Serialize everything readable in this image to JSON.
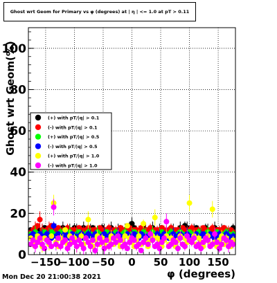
{
  "title": "Ghost wrt Geom for Primary vs φ (degrees) at | η | <= 1.0 at pT > 0.11",
  "timestamp": "Mon Dec 20 21:00:38 2021",
  "chart_data": {
    "type": "scatter",
    "ylabel": "Ghost wrt Geom(%)",
    "xlabel": "φ (degrees)",
    "xlim": [
      -180,
      180
    ],
    "ylim": [
      0,
      110
    ],
    "grid": true,
    "legend_position": "left-middle",
    "x_ticks": [
      -150,
      -100,
      -50,
      0,
      50,
      100,
      150
    ],
    "x_tick_labels": [
      "−150",
      "−100",
      "−50",
      "0",
      "50",
      "100",
      "150"
    ],
    "y_ticks": [
      0,
      20,
      40,
      60,
      80,
      100
    ],
    "y_tick_labels": [
      "0",
      "20",
      "40",
      "60",
      "80",
      "100"
    ],
    "x": [
      -176,
      -172,
      -168,
      -164,
      -160,
      -156,
      -152,
      -148,
      -144,
      -140,
      -136,
      -132,
      -128,
      -124,
      -120,
      -116,
      -112,
      -108,
      -104,
      -100,
      -96,
      -92,
      -88,
      -84,
      -80,
      -76,
      -72,
      -68,
      -64,
      -60,
      -56,
      -52,
      -48,
      -44,
      -40,
      -36,
      -32,
      -28,
      -24,
      -20,
      -16,
      -12,
      -8,
      -4,
      0,
      4,
      8,
      12,
      16,
      20,
      24,
      28,
      32,
      36,
      40,
      44,
      48,
      52,
      56,
      60,
      64,
      68,
      72,
      76,
      80,
      84,
      88,
      92,
      96,
      100,
      104,
      108,
      112,
      116,
      120,
      124,
      128,
      132,
      136,
      140,
      144,
      148,
      152,
      156,
      160,
      164,
      168,
      172,
      176
    ],
    "series": [
      {
        "name": "(+) with pT/|q| > 0.1",
        "color": "#000000",
        "values": [
          12,
          11,
          13,
          12,
          11,
          12,
          13,
          12,
          11,
          12,
          13,
          12,
          11,
          12,
          13,
          12,
          11,
          12,
          12,
          13,
          12,
          11,
          12,
          13,
          12,
          11,
          12,
          13,
          12,
          11,
          12,
          13,
          12,
          11,
          12,
          13,
          12,
          11,
          12,
          13,
          12,
          12,
          11,
          14,
          15,
          13,
          12,
          11,
          12,
          13,
          12,
          11,
          12,
          13,
          12,
          11,
          12,
          13,
          12,
          11,
          12,
          13,
          12,
          11,
          12,
          13,
          12,
          14,
          13,
          12,
          11,
          12,
          13,
          12,
          11,
          12,
          13,
          12,
          11,
          12,
          13,
          12,
          11,
          12,
          13,
          12,
          11,
          12,
          13
        ]
      },
      {
        "name": "(-) with pT/|q| > 0.1",
        "color": "#ff0000",
        "values": [
          11,
          12,
          13,
          14,
          17,
          12,
          11,
          12,
          13,
          14,
          12,
          11,
          13,
          12,
          11,
          12,
          13,
          11,
          12,
          12,
          11,
          13,
          12,
          11,
          12,
          13,
          11,
          12,
          12,
          11,
          13,
          12,
          11,
          12,
          13,
          11,
          12,
          12,
          11,
          13,
          12,
          11,
          12,
          13,
          11,
          12,
          12,
          11,
          13,
          12,
          11,
          12,
          13,
          11,
          12,
          12,
          11,
          13,
          12,
          11,
          12,
          13,
          11,
          12,
          12,
          11,
          13,
          12,
          11,
          12,
          13,
          11,
          12,
          12,
          11,
          13,
          12,
          11,
          12,
          13,
          11,
          12,
          12,
          11,
          13,
          12,
          11,
          12,
          11
        ]
      },
      {
        "name": "(+) with pT/|q| > 0.5",
        "color": "#00ff00",
        "values": [
          10,
          9,
          11,
          10,
          9,
          10,
          11,
          9,
          10,
          11,
          10,
          9,
          10,
          11,
          10,
          9,
          10,
          11,
          10,
          9,
          10,
          11,
          10,
          9,
          10,
          11,
          10,
          9,
          10,
          11,
          10,
          9,
          10,
          11,
          10,
          9,
          10,
          11,
          10,
          9,
          10,
          11,
          10,
          9,
          10,
          11,
          10,
          9,
          10,
          11,
          10,
          9,
          10,
          11,
          10,
          9,
          10,
          11,
          10,
          9,
          10,
          11,
          10,
          9,
          10,
          11,
          10,
          9,
          10,
          11,
          10,
          9,
          10,
          11,
          10,
          9,
          10,
          11,
          10,
          9,
          10,
          11,
          10,
          9,
          10,
          11,
          10,
          9,
          10
        ]
      },
      {
        "name": "(-) with pT/|q| > 0.5",
        "color": "#0000ff",
        "values": [
          9,
          10,
          8,
          9,
          10,
          9,
          8,
          10,
          9,
          8,
          14,
          9,
          10,
          8,
          9,
          10,
          9,
          8,
          10,
          9,
          8,
          9,
          10,
          8,
          9,
          10,
          9,
          8,
          10,
          9,
          8,
          9,
          10,
          8,
          9,
          10,
          9,
          8,
          10,
          9,
          8,
          9,
          10,
          8,
          9,
          10,
          9,
          8,
          10,
          9,
          8,
          9,
          10,
          8,
          9,
          10,
          9,
          8,
          10,
          9,
          8,
          9,
          10,
          8,
          9,
          10,
          9,
          8,
          10,
          9,
          8,
          9,
          10,
          8,
          9,
          10,
          9,
          8,
          10,
          9,
          8,
          9,
          10,
          8,
          9,
          10,
          9,
          8,
          9
        ]
      },
      {
        "name": "(+) with pT/|q| > 1.0",
        "color": "#ffff00",
        "values": [
          8,
          5,
          7,
          9,
          6,
          4,
          8,
          7,
          5,
          9,
          25,
          6,
          4,
          8,
          7,
          12,
          5,
          9,
          6,
          8,
          4,
          7,
          9,
          5,
          8,
          17,
          6,
          4,
          7,
          9,
          5,
          8,
          6,
          4,
          7,
          9,
          5,
          8,
          6,
          4,
          7,
          9,
          14,
          8,
          6,
          4,
          7,
          9,
          5,
          15,
          6,
          4,
          7,
          9,
          18,
          8,
          6,
          4,
          7,
          9,
          5,
          8,
          6,
          4,
          7,
          9,
          5,
          8,
          6,
          25,
          7,
          9,
          5,
          8,
          6,
          4,
          7,
          9,
          5,
          22,
          6,
          4,
          7,
          9,
          5,
          8,
          6,
          4,
          7
        ]
      },
      {
        "name": "(-) with pT/|q| > 1.0",
        "color": "#ff00ff",
        "values": [
          5,
          7,
          4,
          6,
          8,
          5,
          3,
          7,
          6,
          4,
          23,
          5,
          8,
          4,
          6,
          7,
          3,
          5,
          8,
          6,
          4,
          7,
          5,
          3,
          8,
          6,
          4,
          7,
          2,
          5,
          8,
          6,
          3,
          7,
          4,
          5,
          8,
          6,
          9,
          7,
          4,
          5,
          3,
          6,
          8,
          7,
          4,
          5,
          2,
          6,
          8,
          5,
          10,
          7,
          4,
          5,
          3,
          6,
          8,
          16,
          4,
          5,
          7,
          6,
          3,
          8,
          5,
          4,
          9,
          7,
          6,
          8,
          4,
          5,
          3,
          6,
          8,
          7,
          4,
          5,
          10,
          6,
          3,
          5,
          8,
          7,
          4,
          6,
          5
        ]
      }
    ]
  }
}
